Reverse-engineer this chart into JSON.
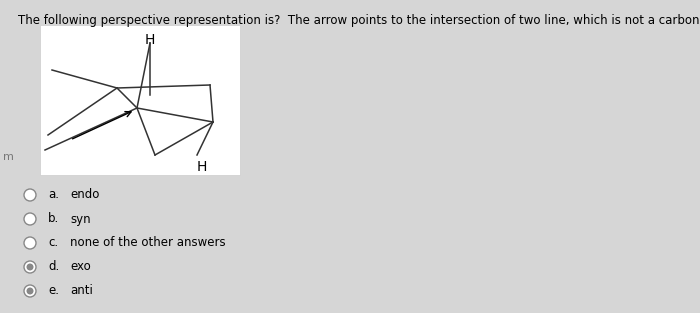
{
  "title": "The following perspective representation is?  The arrow points to the intersection of two line, which is not a carbon.",
  "title_fontsize": 8.5,
  "bg_color": "#d6d6d6",
  "box_bg": "#ffffff",
  "options": [
    {
      "letter": "a.",
      "text": "endo"
    },
    {
      "letter": "b.",
      "text": "syn"
    },
    {
      "letter": "c.",
      "text": "none of the other answers"
    },
    {
      "letter": "d.",
      "text": "exo"
    },
    {
      "letter": "e.",
      "text": "anti"
    }
  ],
  "option_selected": [
    false,
    false,
    false,
    true,
    true
  ]
}
